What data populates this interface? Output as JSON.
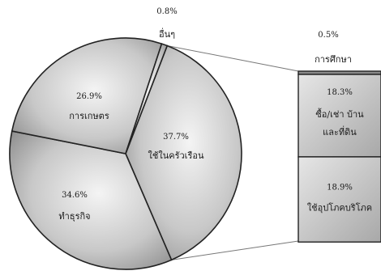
{
  "chart_data": {
    "type": "pie",
    "title": "",
    "slices": [
      {
        "label": "ใช้ในครัวเรือน",
        "value": 37.7,
        "value_label": "37.7%",
        "color": "#d0d0d0"
      },
      {
        "label": "ทำธุรกิจ",
        "value": 34.6,
        "value_label": "34.6%",
        "color": "#c6c6c6"
      },
      {
        "label": "การเกษตร",
        "value": 26.9,
        "value_label": "26.9%",
        "color": "#cbcbcb"
      },
      {
        "label": "อื่นๆ",
        "value": 0.8,
        "value_label": "0.8%",
        "color": "#b0b0b0"
      }
    ],
    "breakdown": {
      "of_slice": "ใช้ในครัวเรือน",
      "type": "stacked-bar",
      "segments": [
        {
          "label": "การศึกษา",
          "value": 0.5,
          "value_label": "0.5%",
          "color": "#9a9a9a"
        },
        {
          "label": "ซื้อ/เช่า บ้านและที่ดิน",
          "label_lines": [
            "ซื้อ/เช่า บ้าน",
            "และที่ดิน"
          ],
          "value": 18.3,
          "value_label": "18.3%",
          "color": "#cacaca"
        },
        {
          "label": "ใช้อุปโภคบริโภค",
          "value": 18.9,
          "value_label": "18.9%",
          "color": "#cacaca"
        }
      ]
    },
    "legend": "none",
    "grid": false
  }
}
